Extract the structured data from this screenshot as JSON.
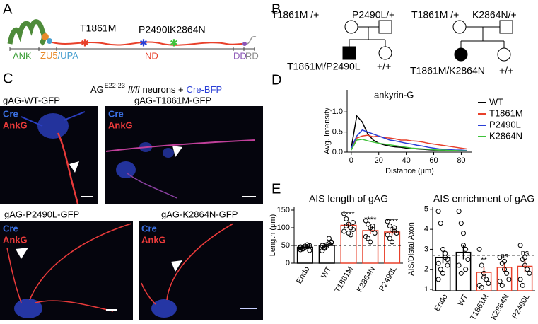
{
  "panel_labels": [
    "A",
    "B",
    "C",
    "D",
    "E"
  ],
  "panel_a": {
    "mutations": [
      "T1861M",
      "P2490L",
      "K2864N"
    ],
    "domains": [
      "ANK",
      "ZU5",
      "/UPA",
      "ND",
      "DD",
      "RD"
    ]
  },
  "panel_b": {
    "pedigrees": [
      {
        "parents": [
          "T1861M /+",
          "P2490L/+"
        ],
        "children": [
          "T1861M/P2490L",
          "+/+"
        ]
      },
      {
        "parents": [
          "T1861M /+",
          "K2864N/+"
        ],
        "children": [
          "T1861M/K2864N",
          "+/+"
        ]
      }
    ]
  },
  "panel_c": {
    "heading": [
      "AG",
      "E22-23",
      "fl/fl",
      "neurons +",
      "Cre-BFP"
    ],
    "images": [
      {
        "title": "gAG-WT-GFP",
        "channels": [
          "Cre",
          "AnkG"
        ]
      },
      {
        "title": "gAG-T1861M-GFP",
        "channels": [
          "Cre",
          "AnkG"
        ]
      },
      {
        "title": "gAG-P2490L-GFP",
        "channels": [
          "Cre",
          "AnkG"
        ]
      },
      {
        "title": "gAG-K2864N-GFP",
        "channels": [
          "Cre",
          "AnkG"
        ]
      }
    ]
  },
  "chart_data": [
    {
      "type": "line",
      "title": "ankyrin-G",
      "xlabel": "Distance (μm)",
      "ylabel": "Avg. Intensity",
      "x": [
        0,
        4,
        8,
        12,
        16,
        20,
        24,
        28,
        32,
        36,
        40,
        44,
        48,
        52,
        56,
        60,
        64,
        68,
        72,
        76,
        80,
        84
      ],
      "series": [
        {
          "name": "WT",
          "color": "#000000",
          "values": [
            0.1,
            0.9,
            0.75,
            0.45,
            0.3,
            0.22,
            0.18,
            0.15,
            0.13,
            0.12,
            0.1,
            0.09,
            0.08,
            0.07,
            0.06,
            0.05,
            0.05,
            0.04,
            0.04,
            0.03,
            0.03,
            0.03
          ]
        },
        {
          "name": "T1861M",
          "color": "#e8402a",
          "values": [
            0.1,
            0.35,
            0.4,
            0.42,
            0.38,
            0.4,
            0.36,
            0.35,
            0.33,
            0.3,
            0.3,
            0.28,
            0.27,
            0.25,
            0.22,
            0.2,
            0.18,
            0.16,
            0.14,
            0.12,
            0.1,
            0.08
          ]
        },
        {
          "name": "P2490L",
          "color": "#2a3fd6",
          "values": [
            0.1,
            0.4,
            0.55,
            0.5,
            0.45,
            0.4,
            0.35,
            0.3,
            0.28,
            0.25,
            0.22,
            0.2,
            0.17,
            0.15,
            0.12,
            0.1,
            0.08,
            0.07,
            0.06,
            0.05,
            0.05,
            0.04
          ]
        },
        {
          "name": "K2864N",
          "color": "#3fc23a",
          "values": [
            0.05,
            0.3,
            0.32,
            0.28,
            0.25,
            0.22,
            0.2,
            0.18,
            0.16,
            0.14,
            0.12,
            0.1,
            0.09,
            0.08,
            0.07,
            0.06,
            0.05,
            0.05,
            0.04,
            0.04,
            0.03,
            0.03
          ]
        }
      ],
      "xlim": [
        -3,
        88
      ],
      "ylim": [
        0,
        1.55
      ],
      "xticks": [
        0,
        20,
        40,
        60,
        80
      ],
      "yticks": [
        {
          "value": 0,
          "label": "0.0"
        },
        {
          "value": 0.5,
          "label": "0.5"
        },
        {
          "value": 1,
          "label": "1.0"
        }
      ]
    },
    {
      "type": "bar",
      "title": "AIS length of gAG",
      "ylabel": "Length (μm)",
      "categories": [
        "Endo",
        "WT",
        "T1861M",
        "K2864N",
        "P2490L"
      ],
      "values": [
        45,
        50,
        107,
        92,
        88
      ],
      "errors": [
        2,
        5,
        10,
        10,
        9
      ],
      "points": [
        [
          38,
          42,
          45,
          47,
          50,
          44,
          40,
          48,
          52,
          36,
          46
        ],
        [
          35,
          42,
          48,
          55,
          60,
          50,
          45,
          52,
          70,
          58
        ],
        [
          140,
          125,
          110,
          100,
          95,
          90,
          105,
          85,
          80,
          115
        ],
        [
          120,
          110,
          100,
          95,
          85,
          75,
          70,
          60,
          105
        ],
        [
          118,
          105,
          95,
          90,
          85,
          80,
          70,
          60,
          100
        ]
      ],
      "colors": [
        "#000000",
        "#000000",
        "#e8402a",
        "#e8402a",
        "#e8402a"
      ],
      "significance": [
        null,
        null,
        "****",
        "****",
        "****"
      ],
      "reference": 50,
      "ylim": [
        0,
        158
      ],
      "yticks": [
        0,
        50,
        100,
        150
      ]
    },
    {
      "type": "bar",
      "title": "AIS enrichment of gAG",
      "ylabel": "AIS/Distal Axon",
      "categories": [
        "Endo",
        "WT",
        "T1861M",
        "K2864N",
        "P2490L"
      ],
      "values": [
        2.6,
        2.85,
        1.85,
        2.1,
        2.15
      ],
      "errors": [
        0.3,
        0.35,
        0.25,
        0.2,
        0.3
      ],
      "points": [
        [
          4.9,
          4.3,
          3.0,
          2.6,
          2.5,
          2.3,
          2.0,
          1.8,
          2.8,
          2.2,
          1.5
        ],
        [
          4.9,
          4.3,
          3.8,
          3.0,
          2.5,
          2.2,
          1.8,
          3.2,
          2.0
        ],
        [
          3.0,
          2.2,
          1.8,
          1.5,
          1.3,
          1.2,
          1.1,
          1.6
        ],
        [
          2.6,
          2.3,
          2.0,
          1.8,
          1.5,
          1.4,
          1.2,
          2.4
        ],
        [
          3.2,
          2.5,
          2.2,
          2.0,
          1.8,
          1.5,
          1.2,
          2.6
        ]
      ],
      "colors": [
        "#000000",
        "#000000",
        "#e8402a",
        "#e8402a",
        "#e8402a"
      ],
      "significance": [
        null,
        null,
        "**",
        "ns",
        "ns"
      ],
      "reference": 2.7,
      "ylim": [
        0.93,
        5.1
      ],
      "yticks": [
        1,
        2,
        3,
        4,
        5
      ]
    }
  ]
}
